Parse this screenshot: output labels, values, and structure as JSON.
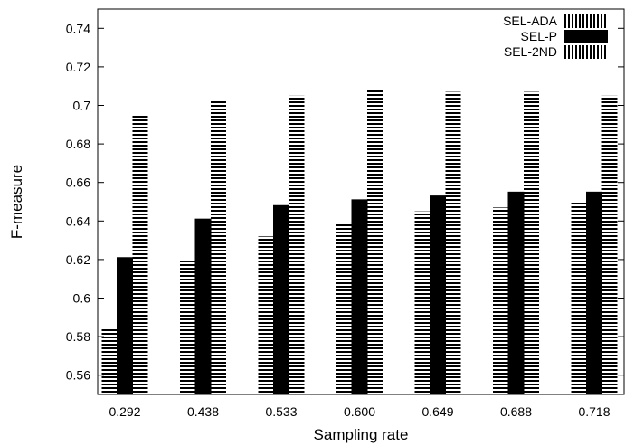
{
  "chart_data": {
    "type": "bar",
    "title": "",
    "xlabel": "Sampling rate",
    "ylabel": "F-measure",
    "categories": [
      "0.292",
      "0.438",
      "0.533",
      "0.600",
      "0.649",
      "0.688",
      "0.718"
    ],
    "ylim": [
      0.55,
      0.75
    ],
    "yticks": [
      "0.56",
      "0.58",
      "0.6",
      "0.62",
      "0.64",
      "0.66",
      "0.68",
      "0.7",
      "0.72",
      "0.74"
    ],
    "grid": false,
    "legend_position": "top-right",
    "series": [
      {
        "name": "SEL-ADA",
        "pattern": "horizontal-stripes",
        "values": [
          0.584,
          0.619,
          0.632,
          0.639,
          0.645,
          0.647,
          0.65
        ]
      },
      {
        "name": "SEL-P",
        "pattern": "solid",
        "values": [
          0.621,
          0.641,
          0.648,
          0.651,
          0.653,
          0.655,
          0.655
        ]
      },
      {
        "name": "SEL-2ND",
        "pattern": "horizontal-stripes",
        "values": [
          0.695,
          0.703,
          0.705,
          0.708,
          0.707,
          0.707,
          0.705
        ]
      }
    ],
    "legend_patterns": [
      "vertical-stripes",
      "solid",
      "vertical-stripes"
    ],
    "colors": {
      "ink": "#000000",
      "background": "#ffffff"
    }
  }
}
